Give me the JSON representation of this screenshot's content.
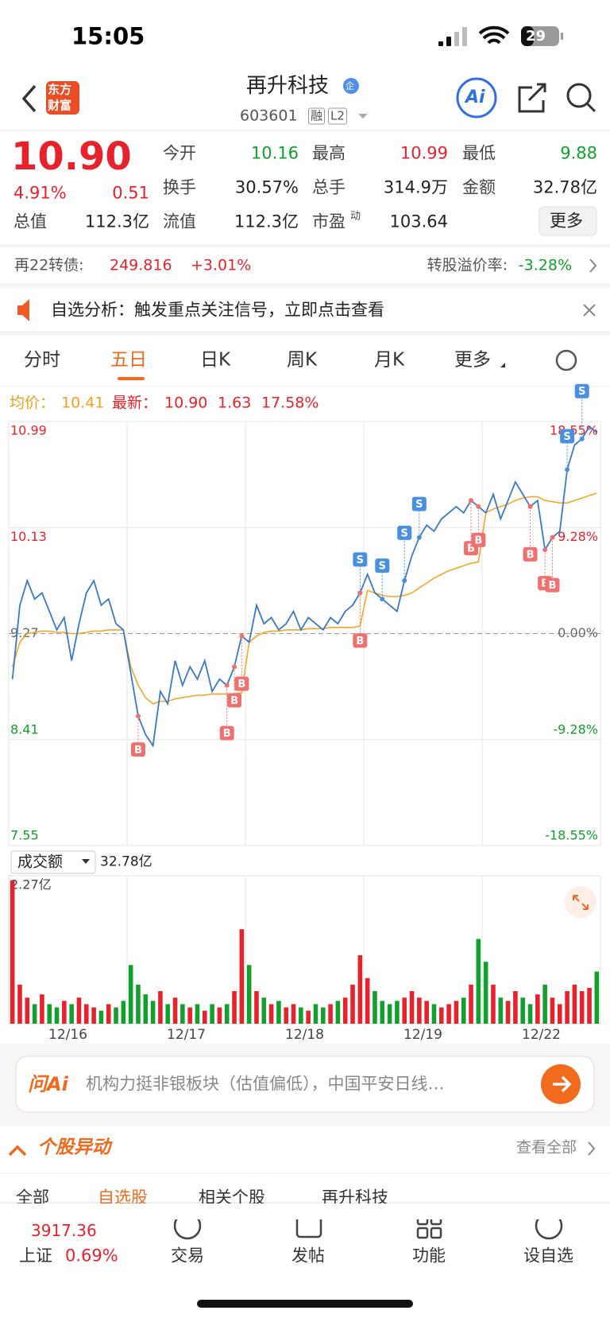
{
  "status": {
    "time": "15:05",
    "battery": "29"
  },
  "logo": [
    "东方",
    "财富"
  ],
  "stock": {
    "name": "再升科技",
    "badge": "企",
    "code": "603601",
    "tags": [
      "融",
      "L2"
    ]
  },
  "quote": {
    "price": "10.90",
    "change_pct": "4.91%",
    "change": "0.51",
    "fields": [
      {
        "label": "今开",
        "value": "10.16"
      },
      {
        "label": "最高",
        "value": "10.99"
      },
      {
        "label": "最低",
        "value": "9.88"
      },
      {
        "label": "换手",
        "value": "30.57%"
      },
      {
        "label": "总手",
        "value": "314.9万"
      },
      {
        "label": "金额",
        "value": "32.78亿"
      },
      {
        "label": "总值",
        "value": "112.3亿"
      },
      {
        "label": "流值",
        "value": "112.3亿"
      },
      {
        "label": "市盈",
        "sup": "动",
        "value": "103.64"
      }
    ],
    "more": "更多"
  },
  "bond": {
    "name": "再22转债:",
    "price": "249.816",
    "change": "+3.01%",
    "premium_label": "转股溢价率:",
    "premium": "-3.28%"
  },
  "alert": "自选分析：触发重点关注信号，立即点击查看",
  "tabs": [
    "分时",
    "五日",
    "日K",
    "周K",
    "月K",
    "更多"
  ],
  "chart_data": {
    "type": "line",
    "legend": {
      "avg_value": "10.41",
      "latest_value": "10.90",
      "change": "1.63",
      "change_pct": "17.58%"
    },
    "days": [
      "12/16",
      "12/17",
      "12/18",
      "12/19",
      "12/22"
    ],
    "ylim": [
      7.55,
      10.99
    ],
    "yticks": [
      10.99,
      10.13,
      9.27,
      8.41,
      7.55
    ],
    "y2lim": [
      -18.55,
      18.55
    ],
    "y2ticks": [
      {
        "value": 18.55,
        "label": "18.55%"
      },
      {
        "value": 9.28,
        "label": "9.28%"
      },
      {
        "value": 0,
        "label": "0.00%"
      },
      {
        "value": -9.28,
        "label": "-9.28%"
      },
      {
        "value": -18.55,
        "label": "-18.55%"
      }
    ],
    "series": [
      {
        "name": "最新：",
        "color": "#3a78c9",
        "values": [
          8.9,
          9.5,
          9.7,
          9.55,
          9.6,
          9.45,
          9.3,
          9.4,
          9.05,
          9.35,
          9.6,
          9.7,
          9.5,
          9.55,
          9.35,
          9.3,
          8.95,
          8.6,
          8.45,
          8.36,
          8.8,
          8.7,
          9.05,
          8.85,
          9.0,
          8.9,
          9.05,
          8.8,
          8.9,
          8.85,
          9.0,
          9.25,
          9.2,
          9.5,
          9.35,
          9.4,
          9.3,
          9.35,
          9.45,
          9.3,
          9.4,
          9.35,
          9.3,
          9.4,
          9.35,
          9.45,
          9.5,
          9.6,
          9.75,
          9.6,
          9.55,
          9.5,
          9.45,
          9.7,
          9.9,
          10.05,
          10.15,
          10.1,
          10.2,
          10.25,
          10.3,
          10.25,
          10.35,
          10.3,
          10.25,
          10.4,
          10.2,
          10.35,
          10.5,
          10.4,
          10.3,
          10.35,
          9.95,
          10.05,
          10.1,
          10.6,
          10.8,
          10.85,
          10.95,
          10.9
        ]
      },
      {
        "name": "均价：",
        "color": "#f5a623",
        "values": [
          9.0,
          9.2,
          9.27,
          9.28,
          9.29,
          9.29,
          9.28,
          9.28,
          9.27,
          9.27,
          9.28,
          9.29,
          9.29,
          9.3,
          9.3,
          9.3,
          9.0,
          8.85,
          8.75,
          8.7,
          8.72,
          8.72,
          8.74,
          8.75,
          8.76,
          8.77,
          8.77,
          8.78,
          8.78,
          8.78,
          8.78,
          8.79,
          9.2,
          9.25,
          9.28,
          9.29,
          9.29,
          9.3,
          9.3,
          9.3,
          9.31,
          9.31,
          9.31,
          9.32,
          9.32,
          9.32,
          9.32,
          9.33,
          9.62,
          9.6,
          9.58,
          9.57,
          9.57,
          9.58,
          9.6,
          9.64,
          9.68,
          9.72,
          9.75,
          9.78,
          9.8,
          9.82,
          9.84,
          9.85,
          10.25,
          10.28,
          10.3,
          10.32,
          10.35,
          10.37,
          10.38,
          10.38,
          10.35,
          10.34,
          10.33,
          10.33,
          10.35,
          10.37,
          10.39,
          10.41
        ]
      }
    ],
    "signals": [
      {
        "index": 17,
        "label": "B"
      },
      {
        "index": 29,
        "label": "B"
      },
      {
        "index": 30,
        "label": "B"
      },
      {
        "index": 31,
        "label": "B"
      },
      {
        "index": 47,
        "label": "S"
      },
      {
        "index": 47,
        "label": "B"
      },
      {
        "index": 50,
        "label": "S"
      },
      {
        "index": 53,
        "label": "S"
      },
      {
        "index": 55,
        "label": "S"
      },
      {
        "index": 62,
        "label": "B"
      },
      {
        "index": 63,
        "label": "B"
      },
      {
        "index": 70,
        "label": "B"
      },
      {
        "index": 72,
        "label": "B"
      },
      {
        "index": 73,
        "label": "B"
      },
      {
        "index": 75,
        "label": "S"
      },
      {
        "index": 77,
        "label": "S"
      }
    ],
    "volume": {
      "label": "成交额",
      "total": "32.78亿",
      "ylim": [
        0,
        2.27
      ],
      "yticks": [
        {
          "value": 2.27,
          "label": "2.27亿"
        }
      ],
      "values": [
        2.2,
        0.6,
        0.4,
        0.3,
        0.45,
        0.3,
        0.25,
        0.35,
        0.3,
        0.4,
        0.3,
        0.25,
        0.2,
        0.3,
        0.25,
        0.35,
        0.9,
        0.6,
        0.45,
        0.35,
        0.5,
        0.3,
        0.4,
        0.3,
        0.25,
        0.3,
        0.2,
        0.3,
        0.25,
        0.3,
        0.5,
        1.45,
        0.9,
        0.5,
        0.4,
        0.3,
        0.35,
        0.25,
        0.3,
        0.25,
        0.2,
        0.3,
        0.25,
        0.3,
        0.35,
        0.4,
        0.6,
        1.05,
        0.7,
        0.5,
        0.35,
        0.3,
        0.35,
        0.4,
        0.5,
        0.4,
        0.35,
        0.3,
        0.25,
        0.3,
        0.35,
        0.4,
        0.6,
        1.3,
        0.95,
        0.6,
        0.4,
        0.35,
        0.5,
        0.4,
        0.3,
        0.45,
        0.6,
        0.4,
        0.3,
        0.5,
        0.6,
        0.5,
        0.55,
        0.8
      ]
    }
  },
  "ai": {
    "brand": "问Ai",
    "text": "机构力挺非银板块（估值偏低），中国平安日线…"
  },
  "section": {
    "title": "个股异动",
    "link": "查看全部",
    "tabs": [
      "全部",
      "自选股",
      "相关个股",
      "再升科技"
    ]
  },
  "nav": {
    "index_value": "3917.36",
    "index_name": "上证",
    "index_change": "0.69%",
    "items": [
      "交易",
      "发帖",
      "功能",
      "设自选"
    ]
  }
}
